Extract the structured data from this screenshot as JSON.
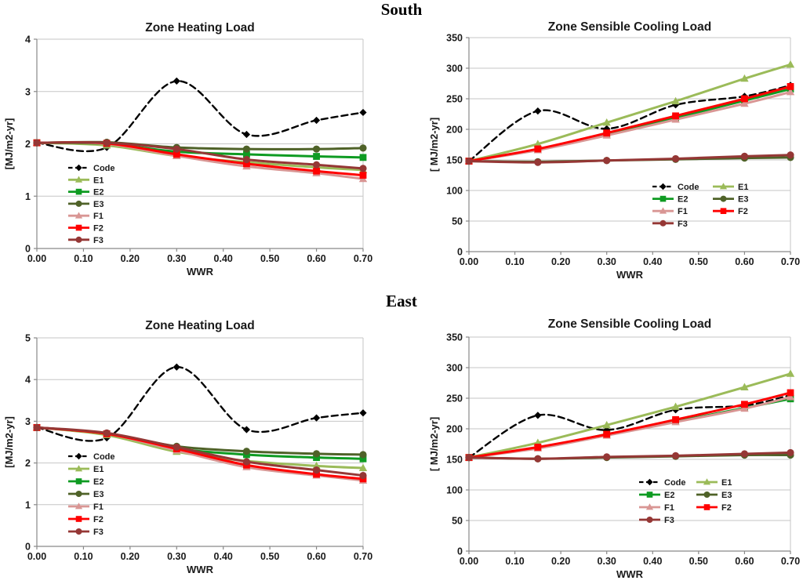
{
  "page": {
    "background": "#ffffff"
  },
  "palette": {
    "grid": "#c6c6c6",
    "axis": "#898989",
    "text": "#1a1a1a"
  },
  "sections": [
    {
      "heading": "South"
    },
    {
      "heading": "East"
    }
  ],
  "series_styles": [
    {
      "name": "Code",
      "color": "#000000",
      "marker": "diamond",
      "dashed": true
    },
    {
      "name": "E1",
      "color": "#9BBB59",
      "marker": "triangle",
      "dashed": false
    },
    {
      "name": "E2",
      "color": "#0E9B22",
      "marker": "square",
      "dashed": false
    },
    {
      "name": "E3",
      "color": "#4F6228",
      "marker": "circle",
      "dashed": false
    },
    {
      "name": "F1",
      "color": "#D99694",
      "marker": "triangle",
      "dashed": false
    },
    {
      "name": "F2",
      "color": "#FF0000",
      "marker": "square",
      "dashed": false
    },
    {
      "name": "F3",
      "color": "#953735",
      "marker": "circle",
      "dashed": false
    }
  ],
  "chart_data": [
    {
      "id": "south-heating",
      "section": "South",
      "type": "line",
      "title": "Zone Heating Load",
      "xlabel": "WWR",
      "ylabel": "[MJ/m2-yr]",
      "xlim": [
        0,
        0.7
      ],
      "ylim": [
        0,
        4
      ],
      "grid": "horizontal",
      "xticks": [
        "0.00",
        "0.10",
        "0.20",
        "0.30",
        "0.40",
        "0.50",
        "0.60",
        "0.70"
      ],
      "yticks": [
        "0",
        "1",
        "2",
        "3",
        "4"
      ],
      "x": [
        0,
        0.15,
        0.3,
        0.45,
        0.6,
        0.7
      ],
      "legend": {
        "position": "inside-left",
        "columns": 1,
        "order": [
          "Code",
          "E1",
          "E2",
          "E3",
          "F1",
          "F2",
          "F3"
        ]
      },
      "series": [
        {
          "name": "Code",
          "values": [
            2.02,
            1.93,
            3.2,
            2.18,
            2.45,
            2.6
          ]
        },
        {
          "name": "E1",
          "values": [
            2.02,
            1.97,
            1.77,
            1.65,
            1.55,
            1.5
          ]
        },
        {
          "name": "E2",
          "values": [
            2.02,
            2.0,
            1.85,
            1.8,
            1.76,
            1.74
          ]
        },
        {
          "name": "E3",
          "values": [
            2.02,
            2.03,
            1.93,
            1.9,
            1.9,
            1.92
          ]
        },
        {
          "name": "F1",
          "values": [
            2.02,
            2.0,
            1.77,
            1.57,
            1.44,
            1.33
          ]
        },
        {
          "name": "F2",
          "values": [
            2.02,
            2.01,
            1.8,
            1.62,
            1.48,
            1.4
          ]
        },
        {
          "name": "F3",
          "values": [
            2.02,
            2.02,
            1.9,
            1.7,
            1.6,
            1.53
          ]
        }
      ]
    },
    {
      "id": "south-cooling",
      "section": "South",
      "type": "line",
      "title": "Zone Sensible Cooling Load",
      "xlabel": "WWR",
      "ylabel": "[ MJ/m2-yr]",
      "xlim": [
        0,
        0.7
      ],
      "ylim": [
        0,
        350
      ],
      "grid": "horizontal",
      "xticks": [
        "0.00",
        "0.10",
        "0.20",
        "0.30",
        "0.40",
        "0.50",
        "0.60",
        "0.70"
      ],
      "yticks": [
        "0",
        "50",
        "100",
        "150",
        "200",
        "250",
        "300",
        "350"
      ],
      "x": [
        0,
        0.15,
        0.3,
        0.45,
        0.6,
        0.7
      ],
      "legend": {
        "position": "inside-bottom-right",
        "columns": 2,
        "order": [
          "Code",
          "E1",
          "E2",
          "E3",
          "F1",
          "F2",
          "F3"
        ]
      },
      "series": [
        {
          "name": "Code",
          "values": [
            148,
            230,
            201,
            240,
            254,
            272
          ]
        },
        {
          "name": "E1",
          "values": [
            148,
            176,
            211,
            246,
            283,
            306
          ]
        },
        {
          "name": "E2",
          "values": [
            148,
            167,
            192,
            219,
            247,
            266
          ]
        },
        {
          "name": "E3",
          "values": [
            148,
            147,
            149,
            151,
            153,
            154
          ]
        },
        {
          "name": "F1",
          "values": [
            148,
            166,
            190,
            216,
            242,
            261
          ]
        },
        {
          "name": "F2",
          "values": [
            148,
            168,
            194,
            222,
            250,
            270
          ]
        },
        {
          "name": "F3",
          "values": [
            148,
            146,
            149,
            152,
            156,
            158
          ]
        }
      ]
    },
    {
      "id": "east-heating",
      "section": "East",
      "type": "line",
      "title": "Zone Heating Load",
      "xlabel": "WWR",
      "ylabel": "[MJ/m2-yr]",
      "xlim": [
        0,
        0.7
      ],
      "ylim": [
        0,
        5
      ],
      "grid": "horizontal",
      "xticks": [
        "0.00",
        "0.10",
        "0.20",
        "0.30",
        "0.40",
        "0.50",
        "0.60",
        "0.70"
      ],
      "yticks": [
        "0",
        "1",
        "2",
        "3",
        "4",
        "5"
      ],
      "x": [
        0,
        0.15,
        0.3,
        0.45,
        0.6,
        0.7
      ],
      "legend": {
        "position": "inside-left",
        "columns": 1,
        "order": [
          "Code",
          "E1",
          "E2",
          "E3",
          "F1",
          "F2",
          "F3"
        ]
      },
      "series": [
        {
          "name": "Code",
          "values": [
            2.85,
            2.6,
            4.3,
            2.8,
            3.08,
            3.2
          ]
        },
        {
          "name": "E1",
          "values": [
            2.85,
            2.67,
            2.27,
            2.05,
            1.93,
            1.88
          ]
        },
        {
          "name": "E2",
          "values": [
            2.85,
            2.7,
            2.35,
            2.2,
            2.13,
            2.1
          ]
        },
        {
          "name": "E3",
          "values": [
            2.85,
            2.71,
            2.4,
            2.28,
            2.22,
            2.2
          ]
        },
        {
          "name": "F1",
          "values": [
            2.85,
            2.7,
            2.3,
            1.9,
            1.7,
            1.58
          ]
        },
        {
          "name": "F2",
          "values": [
            2.85,
            2.7,
            2.34,
            1.95,
            1.73,
            1.62
          ]
        },
        {
          "name": "F3",
          "values": [
            2.85,
            2.72,
            2.38,
            2.03,
            1.83,
            1.7
          ]
        }
      ]
    },
    {
      "id": "east-cooling",
      "section": "East",
      "type": "line",
      "title": "Zone Sensible Cooling Load",
      "xlabel": "WWR",
      "ylabel": "[ MJ/m2-yr]",
      "xlim": [
        0,
        0.7
      ],
      "ylim": [
        0,
        350
      ],
      "grid": "horizontal",
      "xticks": [
        "0.00",
        "0.10",
        "0.20",
        "0.30",
        "0.40",
        "0.50",
        "0.60",
        "0.70"
      ],
      "yticks": [
        "0",
        "50",
        "100",
        "150",
        "200",
        "250",
        "300",
        "350"
      ],
      "x": [
        0,
        0.15,
        0.3,
        0.45,
        0.6,
        0.7
      ],
      "legend": {
        "position": "inside-bottom-right",
        "columns": 2,
        "order": [
          "Code",
          "E1",
          "E2",
          "E3",
          "F1",
          "F2",
          "F3"
        ]
      },
      "series": [
        {
          "name": "Code",
          "values": [
            153,
            222,
            198,
            231,
            238,
            255
          ]
        },
        {
          "name": "E1",
          "values": [
            153,
            177,
            206,
            236,
            268,
            290
          ]
        },
        {
          "name": "E2",
          "values": [
            153,
            169,
            191,
            212,
            234,
            249
          ]
        },
        {
          "name": "E3",
          "values": [
            153,
            151,
            153,
            155,
            157,
            157
          ]
        },
        {
          "name": "F1",
          "values": [
            153,
            168,
            189,
            211,
            233,
            252
          ]
        },
        {
          "name": "F2",
          "values": [
            153,
            170,
            191,
            215,
            240,
            259
          ]
        },
        {
          "name": "F3",
          "values": [
            153,
            151,
            154,
            156,
            159,
            161
          ]
        }
      ]
    }
  ]
}
